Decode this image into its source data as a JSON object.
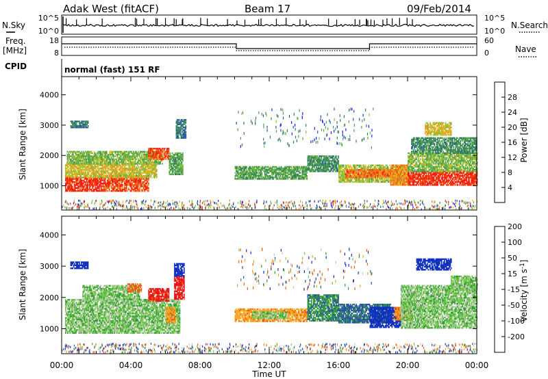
{
  "header": {
    "station": "Adak West (fitACF)",
    "beam": "Beam 17",
    "date": "09/Feb/2014"
  },
  "noise_panel": {
    "left_label": "N.Sky",
    "right_label": "N.Search",
    "left_ticks": [
      "10^5",
      "10^0"
    ],
    "right_ticks": [
      "10^5",
      "10^0"
    ]
  },
  "freq_panel": {
    "left_label_1": "Freq.",
    "left_label_2": "[MHz]",
    "right_label": "Nave",
    "left_ticks": [
      "18",
      "8"
    ],
    "right_ticks": [
      "60",
      "0"
    ]
  },
  "cpid": {
    "label": "CPID",
    "value": "normal (fast) 151 RF"
  },
  "colors": {
    "power": [
      "#1a1aff",
      "#2a4fb0",
      "#2f7f5f",
      "#4fa050",
      "#80c040",
      "#e0c020",
      "#f09020",
      "#f05a10",
      "#f21c10"
    ],
    "velocity": [
      "#e8141a",
      "#f05a10",
      "#f5a623",
      "#c8c8b8",
      "#6cc845",
      "#2f9a3c",
      "#2a4fa8",
      "#1030c0"
    ],
    "ground_scatter": "#bbbbb0"
  },
  "chart_data": [
    {
      "name": "power",
      "type": "heatmap",
      "xlabel": "Time UT",
      "ylabel": "Slant Range [km]",
      "x_ticks": [
        "00:00",
        "04:00",
        "08:00",
        "12:00",
        "16:00",
        "20:00",
        "00:00"
      ],
      "y_ticks": [
        "1000",
        "2000",
        "3000",
        "4000"
      ],
      "xlim_hours": [
        0,
        24
      ],
      "ylim_km": [
        200,
        4600
      ],
      "colorbar": {
        "label": "Power [dB]",
        "ticks": [
          "4",
          "8",
          "12",
          "16",
          "20",
          "24",
          "28"
        ],
        "range": [
          0,
          30
        ]
      },
      "regions": [
        {
          "t": [
            0.2,
            2.5
          ],
          "r": [
            850,
            1300
          ],
          "level": 28
        },
        {
          "t": [
            2.5,
            5.0
          ],
          "r": [
            850,
            1350
          ],
          "level": 26
        },
        {
          "t": [
            0.2,
            5.5
          ],
          "r": [
            1300,
            1750
          ],
          "level": 18
        },
        {
          "t": [
            0.3,
            5.8
          ],
          "r": [
            1750,
            2150
          ],
          "level": 14
        },
        {
          "t": [
            5.0,
            6.2
          ],
          "r": [
            1900,
            2250
          ],
          "level": 26
        },
        {
          "t": [
            6.2,
            7.0
          ],
          "r": [
            1400,
            2100
          ],
          "level": 12
        },
        {
          "t": [
            6.6,
            7.2
          ],
          "r": [
            2600,
            3200
          ],
          "level": 8
        },
        {
          "t": [
            10.0,
            14.2
          ],
          "r": [
            1250,
            1650
          ],
          "level": 12
        },
        {
          "t": [
            14.2,
            16.0
          ],
          "r": [
            1500,
            2000
          ],
          "level": 10
        },
        {
          "t": [
            16.0,
            19.8
          ],
          "r": [
            1150,
            1700
          ],
          "level": 16
        },
        {
          "t": [
            16.4,
            19.4
          ],
          "r": [
            1300,
            1550
          ],
          "level": 24
        },
        {
          "t": [
            19.0,
            20.0
          ],
          "r": [
            1050,
            1700
          ],
          "level": 22
        },
        {
          "t": [
            20.0,
            24.0
          ],
          "r": [
            1050,
            1500
          ],
          "level": 28
        },
        {
          "t": [
            20.0,
            24.0
          ],
          "r": [
            1500,
            2100
          ],
          "level": 14
        },
        {
          "t": [
            20.2,
            24.0
          ],
          "r": [
            2100,
            2600
          ],
          "level": 10
        },
        {
          "t": [
            21.0,
            22.5
          ],
          "r": [
            2700,
            3100
          ],
          "level": 18
        },
        {
          "t": [
            0.5,
            1.5
          ],
          "r": [
            2950,
            3150
          ],
          "level": 8
        }
      ]
    },
    {
      "name": "velocity",
      "type": "heatmap",
      "xlabel": "Time UT",
      "ylabel": "Slant Range [km]",
      "x_ticks": [
        "00:00",
        "04:00",
        "08:00",
        "12:00",
        "16:00",
        "20:00",
        "00:00"
      ],
      "y_ticks": [
        "1000",
        "2000",
        "3000",
        "4000"
      ],
      "xlim_hours": [
        0,
        24
      ],
      "ylim_km": [
        200,
        4600
      ],
      "colorbar": {
        "label": "Velocity [m s^-1]",
        "ticks": [
          "-200",
          "-100",
          "-50",
          "-15",
          "15",
          "50",
          "100",
          "200"
        ],
        "range": [
          -250,
          250
        ]
      },
      "regions": [
        {
          "t": [
            0.2,
            6.8
          ],
          "r": [
            850,
            1950
          ],
          "level": 0
        },
        {
          "t": [
            1.2,
            4.5
          ],
          "r": [
            1950,
            2400
          ],
          "level": 0
        },
        {
          "t": [
            5.0,
            6.2
          ],
          "r": [
            1900,
            2300
          ],
          "level": -220
        },
        {
          "t": [
            3.8,
            4.6
          ],
          "r": [
            2200,
            2450
          ],
          "level": -120
        },
        {
          "t": [
            6.0,
            6.6
          ],
          "r": [
            1200,
            1700
          ],
          "level": -90
        },
        {
          "t": [
            6.5,
            7.1
          ],
          "r": [
            1950,
            2700
          ],
          "level": -220
        },
        {
          "t": [
            6.5,
            7.1
          ],
          "r": [
            2700,
            3100
          ],
          "level": 180
        },
        {
          "t": [
            0.5,
            1.5
          ],
          "r": [
            2950,
            3150
          ],
          "level": 220
        },
        {
          "t": [
            10.0,
            14.2
          ],
          "r": [
            1250,
            1650
          ],
          "level": -80
        },
        {
          "t": [
            11.0,
            13.0
          ],
          "r": [
            1350,
            1550
          ],
          "level": 0
        },
        {
          "t": [
            14.2,
            16.0
          ],
          "r": [
            1250,
            2100
          ],
          "level": 40
        },
        {
          "t": [
            16.0,
            19.0
          ],
          "r": [
            1200,
            1800
          ],
          "level": 60
        },
        {
          "t": [
            17.8,
            19.6
          ],
          "r": [
            1050,
            1700
          ],
          "level": 130
        },
        {
          "t": [
            19.2,
            20.2
          ],
          "r": [
            1300,
            1700
          ],
          "level": -90
        },
        {
          "t": [
            19.6,
            24.0
          ],
          "r": [
            1050,
            2400
          ],
          "level": 0
        },
        {
          "t": [
            20.5,
            22.5
          ],
          "r": [
            2900,
            3250
          ],
          "level": 200
        },
        {
          "t": [
            22.5,
            24.0
          ],
          "r": [
            2300,
            2700
          ],
          "level": 0
        }
      ]
    }
  ]
}
